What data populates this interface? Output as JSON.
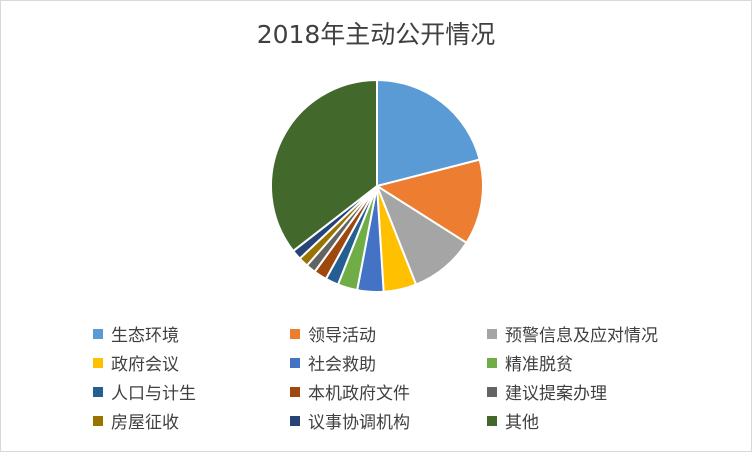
{
  "chart_data": {
    "type": "pie",
    "title": "2018年主动公开情况",
    "categories": [
      "生态环境",
      "领导活动",
      "预警信息及应对情况",
      "政府会议",
      "社会救助",
      "精准脱贫",
      "人口与计生",
      "本机政府文件",
      "建议提案办理",
      "房屋征收",
      "议事协调机构",
      "其他"
    ],
    "values": [
      21,
      13,
      10,
      5,
      4,
      3,
      2,
      2,
      1.5,
      1.5,
      1.5,
      35.5
    ],
    "colors": [
      "#5B9BD5",
      "#ED7D31",
      "#A5A5A5",
      "#FFC000",
      "#4472C4",
      "#70AD47",
      "#255E91",
      "#9E480E",
      "#636363",
      "#997300",
      "#264478",
      "#43682B"
    ],
    "legend": {
      "position": "bottom"
    }
  }
}
